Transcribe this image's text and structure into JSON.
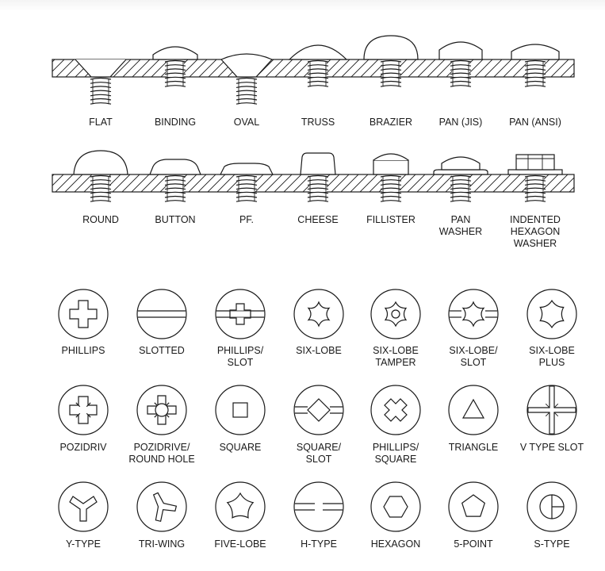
{
  "head_styles_row1": [
    "FLAT",
    "BINDING",
    "OVAL",
    "TRUSS",
    "BRAZIER",
    "PAN (JIS)",
    "PAN (ANSI)"
  ],
  "head_styles_row2": [
    [
      "ROUND"
    ],
    [
      "BUTTON"
    ],
    [
      "PF."
    ],
    [
      "CHEESE"
    ],
    [
      "FILLISTER"
    ],
    [
      "PAN",
      "WASHER"
    ],
    [
      "INDENTED",
      "HEXAGON",
      "WASHER"
    ]
  ],
  "drive_rows": [
    [
      [
        "PHILLIPS"
      ],
      [
        "SLOTTED"
      ],
      [
        "PHILLIPS/",
        "SLOT"
      ],
      [
        "SIX-LOBE"
      ],
      [
        "SIX-LOBE",
        "TAMPER"
      ],
      [
        "SIX-LOBE/",
        "SLOT"
      ],
      [
        "SIX-LOBE",
        "PLUS"
      ]
    ],
    [
      [
        "POZIDRIV"
      ],
      [
        "POZIDRIVE/",
        "ROUND HOLE"
      ],
      [
        "SQUARE"
      ],
      [
        "SQUARE/",
        "SLOT"
      ],
      [
        "PHILLIPS/",
        "SQUARE"
      ],
      [
        "TRIANGLE"
      ],
      [
        "V TYPE SLOT"
      ]
    ],
    [
      [
        "Y-TYPE"
      ],
      [
        "TRI-WING"
      ],
      [
        "FIVE-LOBE"
      ],
      [
        "H-TYPE"
      ],
      [
        "HEXAGON"
      ],
      [
        "5-POINT"
      ],
      [
        "S-TYPE"
      ]
    ]
  ],
  "line_color": "#1a1a1a"
}
